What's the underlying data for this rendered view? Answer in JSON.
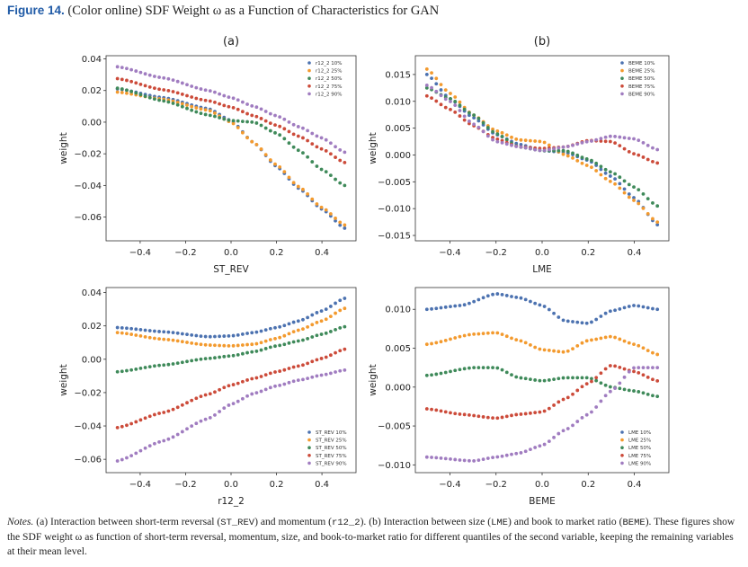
{
  "figure": {
    "label": "Figure 14.",
    "title": "(Color online) SDF Weight ω as a Function of Characteristics for GAN"
  },
  "colors": {
    "q10": "#4c72b0",
    "q25": "#f39a2e",
    "q50": "#3f8a5a",
    "q75": "#cc4b3a",
    "q90": "#a07cc0"
  },
  "notes": {
    "label": "Notes.",
    "p1": " (a) Interaction between short-term reversal (",
    "c1": "ST_REV",
    "p2": ") and momentum (",
    "c2": "r12_2",
    "p3": "). (b) Interaction between size (",
    "c3": "LME",
    "p4": ") and book to market ratio (",
    "c4": "BEME",
    "p5": "). These figures show the SDF weight ω as function of short-term reversal, momentum, size, and book-to-market ratio for different quantiles of the second variable, keeping the remaining variables at their mean level."
  },
  "chart_data": [
    {
      "type": "scatter",
      "panel_title": "(a)",
      "xlabel": "ST_REV",
      "ylabel": "weight",
      "xlim": [
        -0.55,
        0.55
      ],
      "ylim": [
        -0.075,
        0.042
      ],
      "xticks": [
        -0.4,
        -0.2,
        0.0,
        0.2,
        0.4
      ],
      "xtick_labels": [
        "−0.4",
        "−0.2",
        "0.0",
        "0.2",
        "0.4"
      ],
      "yticks": [
        0.04,
        0.02,
        0.0,
        -0.02,
        -0.04,
        -0.06
      ],
      "ytick_labels": [
        "0.04",
        "0.02",
        "0.00",
        "−0.02",
        "−0.04",
        "−0.06"
      ],
      "legend_position": "top-right",
      "grid": false,
      "series": [
        {
          "name": "r12_2 10%",
          "color_key": "q10",
          "points": [
            [
              -0.5,
              0.021
            ],
            [
              -0.3,
              0.0155
            ],
            [
              -0.1,
              0.0085
            ],
            [
              0.0,
              0.001
            ],
            [
              0.1,
              -0.013
            ],
            [
              0.2,
              -0.028
            ],
            [
              0.3,
              -0.042
            ],
            [
              0.4,
              -0.055
            ],
            [
              0.5,
              -0.067
            ]
          ]
        },
        {
          "name": "r12_2 25%",
          "color_key": "q25",
          "points": [
            [
              -0.5,
              0.019
            ],
            [
              -0.3,
              0.0145
            ],
            [
              -0.1,
              0.0075
            ],
            [
              0.0,
              0.0
            ],
            [
              0.1,
              -0.013
            ],
            [
              0.2,
              -0.027
            ],
            [
              0.3,
              -0.041
            ],
            [
              0.4,
              -0.054
            ],
            [
              0.5,
              -0.065
            ]
          ]
        },
        {
          "name": "r12_2 50%",
          "color_key": "q50",
          "points": [
            [
              -0.5,
              0.0215
            ],
            [
              -0.3,
              0.0135
            ],
            [
              -0.1,
              0.0045
            ],
            [
              0.0,
              0.001
            ],
            [
              0.1,
              0.0
            ],
            [
              0.2,
              -0.007
            ],
            [
              0.3,
              -0.018
            ],
            [
              0.4,
              -0.03
            ],
            [
              0.5,
              -0.04
            ]
          ]
        },
        {
          "name": "r12_2 75%",
          "color_key": "q75",
          "points": [
            [
              -0.5,
              0.0275
            ],
            [
              -0.3,
              0.0205
            ],
            [
              -0.1,
              0.0135
            ],
            [
              0.0,
              0.0095
            ],
            [
              0.1,
              0.004
            ],
            [
              0.2,
              -0.002
            ],
            [
              0.3,
              -0.009
            ],
            [
              0.4,
              -0.017
            ],
            [
              0.5,
              -0.0255
            ]
          ]
        },
        {
          "name": "r12_2 90%",
          "color_key": "q90",
          "points": [
            [
              -0.5,
              0.035
            ],
            [
              -0.3,
              0.028
            ],
            [
              -0.1,
              0.02
            ],
            [
              0.0,
              0.0155
            ],
            [
              0.1,
              0.01
            ],
            [
              0.2,
              0.004
            ],
            [
              0.3,
              -0.003
            ],
            [
              0.4,
              -0.01
            ],
            [
              0.5,
              -0.019
            ]
          ]
        }
      ]
    },
    {
      "type": "scatter",
      "panel_title": "(b)",
      "xlabel": "LME",
      "ylabel": "weight",
      "xlim": [
        -0.55,
        0.55
      ],
      "ylim": [
        -0.016,
        0.0185
      ],
      "xticks": [
        -0.4,
        -0.2,
        0.0,
        0.2,
        0.4
      ],
      "xtick_labels": [
        "−0.4",
        "−0.2",
        "0.0",
        "0.2",
        "0.4"
      ],
      "yticks": [
        0.015,
        0.01,
        0.005,
        0.0,
        -0.005,
        -0.01,
        -0.015
      ],
      "ytick_labels": [
        "0.015",
        "0.010",
        "0.005",
        "0.000",
        "−0.005",
        "−0.010",
        "−0.015"
      ],
      "legend_position": "top-right",
      "grid": false,
      "series": [
        {
          "name": "BEME 10%",
          "color_key": "q10",
          "points": [
            [
              -0.5,
              0.015
            ],
            [
              -0.4,
              0.0105
            ],
            [
              -0.3,
              0.007
            ],
            [
              -0.2,
              0.0038
            ],
            [
              -0.1,
              0.002
            ],
            [
              0.0,
              0.0008
            ],
            [
              0.1,
              0.0005
            ],
            [
              0.2,
              -0.001
            ],
            [
              0.3,
              -0.004
            ],
            [
              0.4,
              -0.008
            ],
            [
              0.5,
              -0.013
            ]
          ]
        },
        {
          "name": "BEME 25%",
          "color_key": "q25",
          "points": [
            [
              -0.5,
              0.016
            ],
            [
              -0.4,
              0.0115
            ],
            [
              -0.3,
              0.0075
            ],
            [
              -0.2,
              0.0045
            ],
            [
              -0.1,
              0.0028
            ],
            [
              0.0,
              0.0025
            ],
            [
              0.1,
              0.0
            ],
            [
              0.2,
              -0.002
            ],
            [
              0.3,
              -0.005
            ],
            [
              0.4,
              -0.0085
            ],
            [
              0.5,
              -0.0125
            ]
          ]
        },
        {
          "name": "BEME 50%",
          "color_key": "q50",
          "points": [
            [
              -0.5,
              0.0125
            ],
            [
              -0.4,
              0.0105
            ],
            [
              -0.3,
              0.0075
            ],
            [
              -0.2,
              0.004
            ],
            [
              -0.1,
              0.0015
            ],
            [
              0.0,
              0.0008
            ],
            [
              0.1,
              0.0008
            ],
            [
              0.2,
              -0.0008
            ],
            [
              0.3,
              -0.0032
            ],
            [
              0.4,
              -0.006
            ],
            [
              0.5,
              -0.0095
            ]
          ]
        },
        {
          "name": "BEME 75%",
          "color_key": "q75",
          "points": [
            [
              -0.5,
              0.011
            ],
            [
              -0.4,
              0.0085
            ],
            [
              -0.3,
              0.0055
            ],
            [
              -0.2,
              0.003
            ],
            [
              -0.1,
              0.0015
            ],
            [
              0.0,
              0.0012
            ],
            [
              0.1,
              0.0015
            ],
            [
              0.2,
              0.0027
            ],
            [
              0.3,
              0.0025
            ],
            [
              0.4,
              0.0002
            ],
            [
              0.5,
              -0.0015
            ]
          ]
        },
        {
          "name": "BEME 90%",
          "color_key": "q90",
          "points": [
            [
              -0.5,
              0.013
            ],
            [
              -0.4,
              0.01
            ],
            [
              -0.3,
              0.0058
            ],
            [
              -0.2,
              0.0025
            ],
            [
              -0.1,
              0.0015
            ],
            [
              0.0,
              0.0008
            ],
            [
              0.1,
              0.0015
            ],
            [
              0.2,
              0.0025
            ],
            [
              0.3,
              0.0035
            ],
            [
              0.4,
              0.003
            ],
            [
              0.5,
              0.001
            ]
          ]
        }
      ]
    },
    {
      "type": "scatter",
      "panel_title": "",
      "xlabel": "r12_2",
      "ylabel": "weight",
      "xlim": [
        -0.55,
        0.55
      ],
      "ylim": [
        -0.068,
        0.043
      ],
      "xticks": [
        -0.4,
        -0.2,
        0.0,
        0.2,
        0.4
      ],
      "xtick_labels": [
        "−0.4",
        "−0.2",
        "0.0",
        "0.2",
        "0.4"
      ],
      "yticks": [
        0.04,
        0.02,
        0.0,
        -0.02,
        -0.04,
        -0.06
      ],
      "ytick_labels": [
        "0.04",
        "0.02",
        "0.00",
        "−0.02",
        "−0.04",
        "−0.06"
      ],
      "legend_position": "lower-right",
      "grid": false,
      "series": [
        {
          "name": "ST_REV 10%",
          "color_key": "q10",
          "points": [
            [
              -0.5,
              0.019
            ],
            [
              -0.3,
              0.0165
            ],
            [
              -0.1,
              0.0135
            ],
            [
              0.0,
              0.014
            ],
            [
              0.1,
              0.016
            ],
            [
              0.2,
              0.019
            ],
            [
              0.3,
              0.023
            ],
            [
              0.4,
              0.029
            ],
            [
              0.5,
              0.0365
            ]
          ]
        },
        {
          "name": "ST_REV 25%",
          "color_key": "q25",
          "points": [
            [
              -0.5,
              0.016
            ],
            [
              -0.3,
              0.012
            ],
            [
              -0.1,
              0.0085
            ],
            [
              0.0,
              0.008
            ],
            [
              0.1,
              0.009
            ],
            [
              0.2,
              0.0125
            ],
            [
              0.3,
              0.0175
            ],
            [
              0.4,
              0.023
            ],
            [
              0.5,
              0.0305
            ]
          ]
        },
        {
          "name": "ST_REV 50%",
          "color_key": "q50",
          "points": [
            [
              -0.5,
              -0.0075
            ],
            [
              -0.3,
              -0.0035
            ],
            [
              -0.1,
              0.0005
            ],
            [
              0.0,
              0.002
            ],
            [
              0.1,
              0.0045
            ],
            [
              0.2,
              0.008
            ],
            [
              0.3,
              0.011
            ],
            [
              0.4,
              0.015
            ],
            [
              0.5,
              0.0195
            ]
          ]
        },
        {
          "name": "ST_REV 75%",
          "color_key": "q75",
          "points": [
            [
              -0.5,
              -0.041
            ],
            [
              -0.3,
              -0.032
            ],
            [
              -0.1,
              -0.021
            ],
            [
              0.0,
              -0.0155
            ],
            [
              0.1,
              -0.0115
            ],
            [
              0.2,
              -0.0075
            ],
            [
              0.3,
              -0.004
            ],
            [
              0.4,
              0.0005
            ],
            [
              0.5,
              0.006
            ]
          ]
        },
        {
          "name": "ST_REV 90%",
          "color_key": "q90",
          "points": [
            [
              -0.5,
              -0.061
            ],
            [
              -0.3,
              -0.049
            ],
            [
              -0.1,
              -0.0355
            ],
            [
              0.0,
              -0.027
            ],
            [
              0.1,
              -0.0205
            ],
            [
              0.2,
              -0.016
            ],
            [
              0.3,
              -0.0125
            ],
            [
              0.4,
              -0.0095
            ],
            [
              0.5,
              -0.0065
            ]
          ]
        }
      ]
    },
    {
      "type": "scatter",
      "panel_title": "",
      "xlabel": "BEME",
      "ylabel": "weight",
      "xlim": [
        -0.55,
        0.55
      ],
      "ylim": [
        -0.011,
        0.0128
      ],
      "xticks": [
        -0.4,
        -0.2,
        0.0,
        0.2,
        0.4
      ],
      "xtick_labels": [
        "−0.4",
        "−0.2",
        "0.0",
        "0.2",
        "0.4"
      ],
      "yticks": [
        0.01,
        0.005,
        0.0,
        -0.005,
        -0.01
      ],
      "ytick_labels": [
        "0.010",
        "0.005",
        "0.000",
        "−0.005",
        "−0.010"
      ],
      "legend_position": "lower-right",
      "grid": false,
      "series": [
        {
          "name": "LME 10%",
          "color_key": "q10",
          "points": [
            [
              -0.5,
              0.01
            ],
            [
              -0.35,
              0.0105
            ],
            [
              -0.2,
              0.012
            ],
            [
              -0.1,
              0.0115
            ],
            [
              0.0,
              0.0105
            ],
            [
              0.1,
              0.0085
            ],
            [
              0.2,
              0.0082
            ],
            [
              0.3,
              0.0098
            ],
            [
              0.4,
              0.0105
            ],
            [
              0.5,
              0.01
            ]
          ]
        },
        {
          "name": "LME 25%",
          "color_key": "q25",
          "points": [
            [
              -0.5,
              0.0055
            ],
            [
              -0.3,
              0.0068
            ],
            [
              -0.2,
              0.007
            ],
            [
              -0.1,
              0.006
            ],
            [
              0.0,
              0.0048
            ],
            [
              0.1,
              0.0045
            ],
            [
              0.2,
              0.006
            ],
            [
              0.3,
              0.0065
            ],
            [
              0.4,
              0.0055
            ],
            [
              0.5,
              0.0042
            ]
          ]
        },
        {
          "name": "LME 50%",
          "color_key": "q50",
          "points": [
            [
              -0.5,
              0.0015
            ],
            [
              -0.3,
              0.0025
            ],
            [
              -0.2,
              0.0025
            ],
            [
              -0.1,
              0.0012
            ],
            [
              0.0,
              0.0008
            ],
            [
              0.1,
              0.0012
            ],
            [
              0.2,
              0.0012
            ],
            [
              0.3,
              0.0
            ],
            [
              0.4,
              -0.0005
            ],
            [
              0.5,
              -0.0012
            ]
          ]
        },
        {
          "name": "LME 75%",
          "color_key": "q75",
          "points": [
            [
              -0.5,
              -0.0028
            ],
            [
              -0.35,
              -0.0035
            ],
            [
              -0.2,
              -0.004
            ],
            [
              -0.1,
              -0.0035
            ],
            [
              0.0,
              -0.0032
            ],
            [
              0.1,
              -0.0015
            ],
            [
              0.2,
              0.0005
            ],
            [
              0.3,
              0.0028
            ],
            [
              0.4,
              0.002
            ],
            [
              0.5,
              0.0008
            ]
          ]
        },
        {
          "name": "LME 90%",
          "color_key": "q90",
          "points": [
            [
              -0.5,
              -0.009
            ],
            [
              -0.3,
              -0.0095
            ],
            [
              -0.2,
              -0.009
            ],
            [
              -0.1,
              -0.0085
            ],
            [
              0.0,
              -0.0075
            ],
            [
              0.1,
              -0.0055
            ],
            [
              0.2,
              -0.0035
            ],
            [
              0.3,
              -0.0005
            ],
            [
              0.4,
              0.0025
            ],
            [
              0.5,
              0.0025
            ]
          ]
        }
      ]
    }
  ]
}
